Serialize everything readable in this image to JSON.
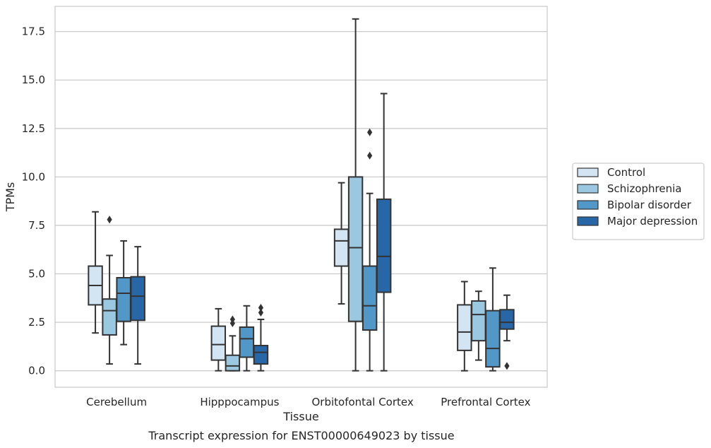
{
  "chart_data": {
    "type": "box",
    "title": "",
    "caption": "Transcript expression for ENST00000649023 by tissue",
    "xlabel": "Tissue",
    "ylabel": "TPMs",
    "ylim": [
      -0.85,
      18.8
    ],
    "yticks": [
      0.0,
      2.5,
      5.0,
      7.5,
      10.0,
      12.5,
      15.0,
      17.5
    ],
    "ytick_labels": [
      "0.0",
      "2.5",
      "5.0",
      "7.5",
      "10.0",
      "12.5",
      "15.0",
      "17.5"
    ],
    "grid": true,
    "legend_position": "right",
    "categories": [
      "Cerebellum",
      "Hipppocampus",
      "Orbitofontal Cortex",
      "Prefrontal Cortex"
    ],
    "series": [
      {
        "name": "Control",
        "color": "#d3e4f3",
        "boxes": [
          {
            "whislo": 1.95,
            "q1": 3.4,
            "med": 4.4,
            "q3": 5.4,
            "whishi": 8.2,
            "fliers": []
          },
          {
            "whislo": 0.0,
            "q1": 0.55,
            "med": 1.35,
            "q3": 2.3,
            "whishi": 3.2,
            "fliers": []
          },
          {
            "whislo": 3.45,
            "q1": 5.4,
            "med": 6.7,
            "q3": 7.3,
            "whishi": 9.7,
            "fliers": []
          },
          {
            "whislo": 0.0,
            "q1": 1.05,
            "med": 2.0,
            "q3": 3.4,
            "whishi": 4.6,
            "fliers": []
          }
        ]
      },
      {
        "name": "Schizophrenia",
        "color": "#9ac8e0",
        "boxes": [
          {
            "whislo": 0.35,
            "q1": 1.85,
            "med": 3.1,
            "q3": 3.7,
            "whishi": 5.95,
            "fliers": [
              7.8
            ]
          },
          {
            "whislo": 0.0,
            "q1": 0.0,
            "med": 0.25,
            "q3": 0.8,
            "whishi": 1.8,
            "fliers": [
              2.45,
              2.65
            ]
          },
          {
            "whislo": 0.0,
            "q1": 2.55,
            "med": 6.35,
            "q3": 10.0,
            "whishi": 18.15,
            "fliers": []
          },
          {
            "whislo": 0.55,
            "q1": 1.55,
            "med": 2.9,
            "q3": 3.6,
            "whishi": 4.1,
            "fliers": []
          }
        ]
      },
      {
        "name": "Bipolar disorder",
        "color": "#5198c9",
        "boxes": [
          {
            "whislo": 1.35,
            "q1": 2.55,
            "med": 4.0,
            "q3": 4.8,
            "whishi": 6.7,
            "fliers": []
          },
          {
            "whislo": 0.0,
            "q1": 0.7,
            "med": 1.65,
            "q3": 2.25,
            "whishi": 3.35,
            "fliers": []
          },
          {
            "whislo": 0.0,
            "q1": 2.1,
            "med": 3.35,
            "q3": 5.4,
            "whishi": 9.15,
            "fliers": [
              11.1,
              12.3
            ]
          },
          {
            "whislo": 0.0,
            "q1": 0.2,
            "med": 1.15,
            "q3": 3.1,
            "whishi": 5.3,
            "fliers": []
          }
        ]
      },
      {
        "name": "Major depression",
        "color": "#2767a8",
        "boxes": [
          {
            "whislo": 0.35,
            "q1": 2.6,
            "med": 3.85,
            "q3": 4.85,
            "whishi": 6.4,
            "fliers": []
          },
          {
            "whislo": 0.0,
            "q1": 0.35,
            "med": 0.95,
            "q3": 1.3,
            "whishi": 2.65,
            "fliers": [
              3.0,
              3.25
            ]
          },
          {
            "whislo": 0.0,
            "q1": 4.05,
            "med": 5.9,
            "q3": 8.85,
            "whishi": 14.3,
            "fliers": []
          },
          {
            "whislo": 1.55,
            "q1": 2.15,
            "med": 2.5,
            "q3": 3.15,
            "whishi": 3.9,
            "fliers": [
              0.25
            ]
          }
        ]
      }
    ]
  }
}
